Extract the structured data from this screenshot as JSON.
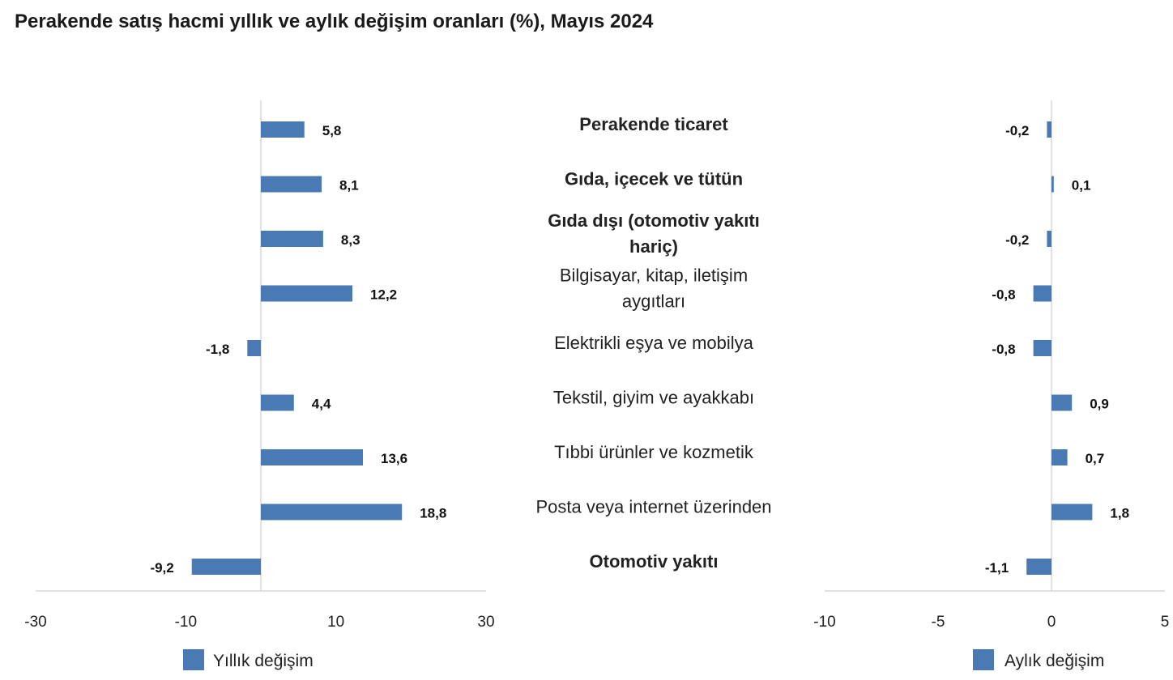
{
  "chart_data": [
    {
      "type": "bar",
      "orientation": "horizontal",
      "title": "Perakende satış hacmi yıllık ve aylık değişim oranları (%), Mayıs 2024",
      "categories": [
        "Perakende ticaret",
        "Gıda, içecek ve tütün",
        "Gıda dışı (otomotiv yakıtı hariç)",
        "Bilgisayar, kitap, iletişim aygıtları",
        "Elektrikli eşya ve mobilya",
        "Tekstil, giyim ve ayakkabı",
        "Tıbbi ürünler ve kozmetik",
        "Posta veya internet üzerinden",
        "Otomotiv yakıtı"
      ],
      "category_lines": [
        [
          "Perakende ticaret"
        ],
        [
          "Gıda, içecek ve tütün"
        ],
        [
          "Gıda dışı (otomotiv yakıtı",
          "hariç)"
        ],
        [
          "Bilgisayar, kitap, iletişim",
          "aygıtları"
        ],
        [
          "Elektrikli eşya ve mobilya"
        ],
        [
          "Tekstil, giyim ve ayakkabı"
        ],
        [
          "Tıbbi ürünler ve kozmetik"
        ],
        [
          "Posta veya internet üzerinden"
        ],
        [
          "Otomotiv yakıtı"
        ]
      ],
      "bold_categories": [
        true,
        true,
        true,
        false,
        false,
        false,
        false,
        false,
        true
      ],
      "series": [
        {
          "name": "Yıllık değişim",
          "values": [
            5.8,
            8.1,
            8.3,
            12.2,
            -1.8,
            4.4,
            13.6,
            18.8,
            -9.2
          ],
          "labels": [
            "5,8",
            "8,1",
            "8,3",
            "12,2",
            "-1,8",
            "4,4",
            "13,6",
            "18,8",
            "-9,2"
          ],
          "xlim": [
            -30,
            30
          ],
          "ticks": [
            "-30",
            "-10",
            "10",
            "30"
          ],
          "tick_values": [
            -30,
            -10,
            10,
            30
          ]
        },
        {
          "name": "Aylık değişim",
          "values": [
            -0.2,
            0.1,
            -0.2,
            -0.8,
            -0.8,
            0.9,
            0.7,
            1.8,
            -1.1
          ],
          "labels": [
            "-0,2",
            "0,1",
            "-0,2",
            "-0,8",
            "-0,8",
            "0,9",
            "0,7",
            "1,8",
            "-1,1"
          ],
          "xlim": [
            -10,
            5
          ],
          "ticks": [
            "-10",
            "-5",
            "0",
            "5"
          ],
          "tick_values": [
            -10,
            -5,
            0,
            5
          ]
        }
      ],
      "legend_position": "bottom",
      "grid": false,
      "colors": {
        "bar": "#4a7ab3",
        "axis": "#d9d9d9"
      }
    }
  ]
}
